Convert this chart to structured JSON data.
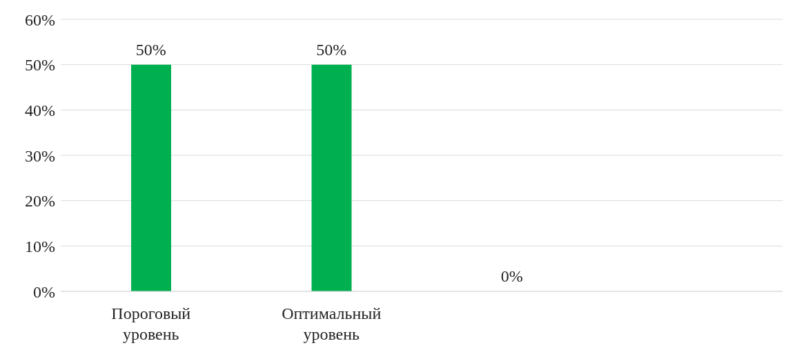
{
  "chart_data": {
    "type": "bar",
    "categories": [
      "Пороговый уровень",
      "Оптимальный уровень",
      null,
      null
    ],
    "values": [
      50,
      50,
      0,
      null
    ],
    "color": "#00b050",
    "value_labels": [
      "50%",
      "50%",
      "0%",
      null
    ],
    "ylim": [
      0,
      60
    ],
    "yticks": [
      {
        "value": 0,
        "label": "0%"
      },
      {
        "value": 10,
        "label": "10%"
      },
      {
        "value": 20,
        "label": "20%"
      },
      {
        "value": 30,
        "label": "30%"
      },
      {
        "value": 40,
        "label": "40%"
      },
      {
        "value": 50,
        "label": "50%"
      },
      {
        "value": 60,
        "label": "60%"
      }
    ],
    "grid": "y"
  }
}
